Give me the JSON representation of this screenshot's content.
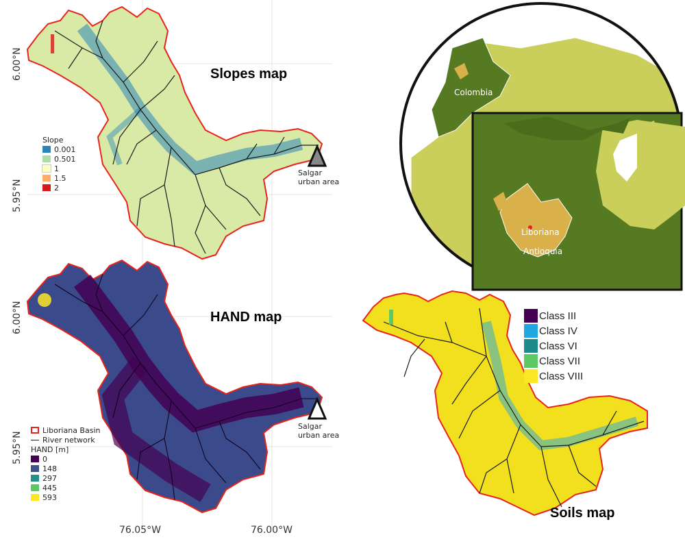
{
  "panels": {
    "slopes": {
      "title": "Slopes map"
    },
    "hand": {
      "title": "HAND map"
    },
    "soils": {
      "title": "Soils map"
    }
  },
  "coordinates": {
    "lat_600": "6.00°N",
    "lat_595": "5.95°N",
    "lon_7605": "76.05°W",
    "lon_7600": "76.00°W"
  },
  "town": {
    "line1": "Salgar",
    "line2": "urban area"
  },
  "slope_legend": {
    "title": "Slope",
    "items": [
      {
        "label": "0.001",
        "color": "#2b83ba"
      },
      {
        "label": "0.501",
        "color": "#abdda4"
      },
      {
        "label": "1",
        "color": "#ffffbf"
      },
      {
        "label": "1.5",
        "color": "#fdae61"
      },
      {
        "label": "2",
        "color": "#d7191c"
      }
    ]
  },
  "hand_legend": {
    "basin_label": "Liboriana Basin",
    "river_label": "River network",
    "title": "HAND [m]",
    "items": [
      {
        "label": "0",
        "color": "#440154"
      },
      {
        "label": "148",
        "color": "#3b528b"
      },
      {
        "label": "297",
        "color": "#21918c"
      },
      {
        "label": "445",
        "color": "#5ec962"
      },
      {
        "label": "593",
        "color": "#fde725"
      }
    ]
  },
  "soil_legend": {
    "items": [
      {
        "label": "Class III",
        "color": "#440154"
      },
      {
        "label": "Class IV",
        "color": "#22a6e0"
      },
      {
        "label": "Class VI",
        "color": "#1f8a8a"
      },
      {
        "label": "Class VII",
        "color": "#5ec962"
      },
      {
        "label": "Class VIII",
        "color": "#fde725"
      }
    ]
  },
  "inset": {
    "country_label": "Colombia",
    "basin_label": "Liboriana",
    "department_label": "Antioquia"
  },
  "colors": {
    "basin_outline": "#e8231b",
    "colombia": "#557a21",
    "neighbors": "#c9cf5a",
    "antioquia": "#d9b04a",
    "river": "#1a1a1a"
  }
}
